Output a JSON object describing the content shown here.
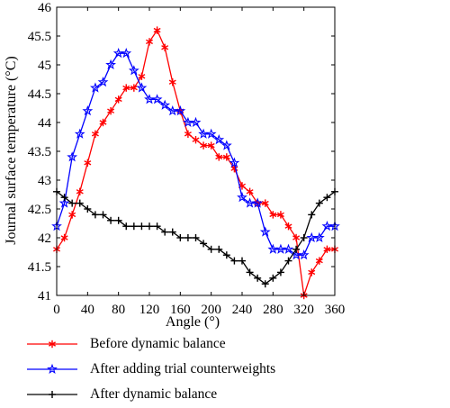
{
  "chart_data": {
    "type": "line",
    "title": "",
    "xlabel": "Angle (°)",
    "ylabel": "Journal surface temperature (°C)",
    "xlim": [
      0,
      360
    ],
    "ylim": [
      41,
      46
    ],
    "xticks": [
      0,
      40,
      80,
      120,
      160,
      200,
      240,
      280,
      320,
      360
    ],
    "yticks": [
      41,
      41.5,
      42,
      42.5,
      43,
      43.5,
      44,
      44.5,
      45,
      45.5,
      46
    ],
    "grid": false,
    "legend_position": "below",
    "x": [
      0,
      10,
      20,
      30,
      40,
      50,
      60,
      70,
      80,
      90,
      100,
      110,
      120,
      130,
      140,
      150,
      160,
      170,
      180,
      190,
      200,
      210,
      220,
      230,
      240,
      250,
      260,
      270,
      280,
      290,
      300,
      310,
      320,
      330,
      340,
      350,
      360
    ],
    "series": [
      {
        "name": "Before dynamic balance",
        "color": "#ff0000",
        "marker": "asterisk",
        "values": [
          41.8,
          42.0,
          42.4,
          42.8,
          43.3,
          43.8,
          44.0,
          44.2,
          44.4,
          44.6,
          44.6,
          44.8,
          45.4,
          45.6,
          45.3,
          44.7,
          44.2,
          43.8,
          43.7,
          43.6,
          43.6,
          43.4,
          43.4,
          43.2,
          42.9,
          42.8,
          42.6,
          42.6,
          42.4,
          42.4,
          42.2,
          42.0,
          41.0,
          41.4,
          41.6,
          41.8,
          41.8
        ]
      },
      {
        "name": "After adding trial counterweights",
        "color": "#0000ff",
        "marker": "star",
        "values": [
          42.2,
          42.6,
          43.4,
          43.8,
          44.2,
          44.6,
          44.7,
          45.0,
          45.2,
          45.2,
          44.9,
          44.6,
          44.4,
          44.4,
          44.3,
          44.2,
          44.2,
          44.0,
          44.0,
          43.8,
          43.8,
          43.7,
          43.6,
          43.3,
          42.7,
          42.6,
          42.6,
          42.1,
          41.8,
          41.8,
          41.8,
          41.7,
          41.7,
          42.0,
          42.0,
          42.2,
          42.2
        ]
      },
      {
        "name": "After dynamic balance",
        "color": "#000000",
        "marker": "plus",
        "values": [
          42.8,
          42.7,
          42.6,
          42.6,
          42.5,
          42.4,
          42.4,
          42.3,
          42.3,
          42.2,
          42.2,
          42.2,
          42.2,
          42.2,
          42.1,
          42.1,
          42.0,
          42.0,
          42.0,
          41.9,
          41.8,
          41.8,
          41.7,
          41.6,
          41.6,
          41.4,
          41.3,
          41.2,
          41.3,
          41.4,
          41.6,
          41.8,
          42.0,
          42.4,
          42.6,
          42.7,
          42.8
        ]
      }
    ]
  }
}
